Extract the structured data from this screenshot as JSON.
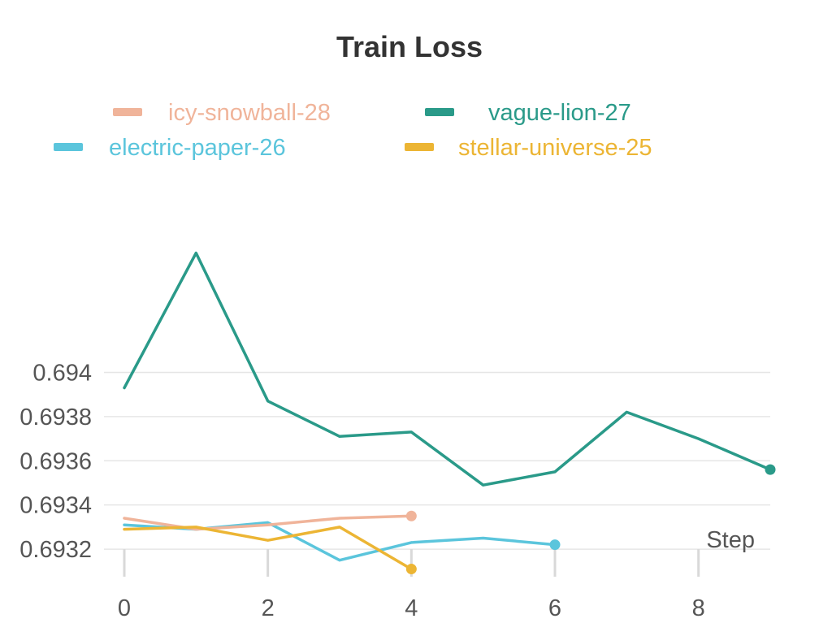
{
  "chart_data": {
    "type": "line",
    "title": "Train Loss",
    "xlabel": "Step",
    "ylabel": "",
    "xlim": [
      0,
      9
    ],
    "ylim": [
      0.69309,
      0.69495
    ],
    "x_ticks": [
      0,
      2,
      4,
      6,
      8
    ],
    "y_ticks": [
      0.6932,
      0.6934,
      0.6936,
      0.6938,
      0.694
    ],
    "y_tick_labels": [
      "0.6932",
      "0.6934",
      "0.6936",
      "0.6938",
      "0.694"
    ],
    "grid": true,
    "legend_position": "top",
    "series": [
      {
        "name": "icy-snowball-28",
        "color": "#f0b49a",
        "x": [
          0,
          1,
          2,
          3,
          4
        ],
        "y": [
          0.69334,
          0.69329,
          0.69331,
          0.69334,
          0.69335
        ]
      },
      {
        "name": "vague-lion-27",
        "color": "#2a9a89",
        "x": [
          0,
          1,
          2,
          3,
          4,
          5,
          6,
          7,
          8,
          9
        ],
        "y": [
          0.69393,
          0.69454,
          0.69387,
          0.69371,
          0.69373,
          0.69349,
          0.69355,
          0.69382,
          0.6937,
          0.69356
        ]
      },
      {
        "name": "electric-paper-26",
        "color": "#5bc5dc",
        "x": [
          0,
          1,
          2,
          3,
          4,
          5,
          6
        ],
        "y": [
          0.69331,
          0.69329,
          0.69332,
          0.69315,
          0.69323,
          0.69325,
          0.69322
        ]
      },
      {
        "name": "stellar-universe-25",
        "color": "#ecb534",
        "x": [
          0,
          1,
          2,
          3,
          4
        ],
        "y": [
          0.69329,
          0.6933,
          0.69324,
          0.6933,
          0.69311
        ]
      }
    ]
  }
}
